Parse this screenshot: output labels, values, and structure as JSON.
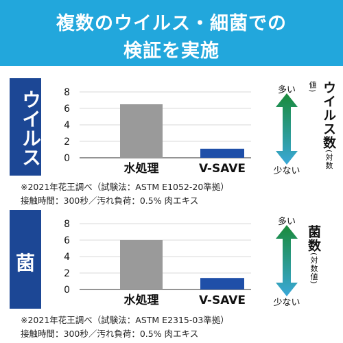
{
  "header": {
    "title_line1": "複数のウイルス・細菌での",
    "title_line2": "検証を実施"
  },
  "panels": [
    {
      "side_label": "ウイルス",
      "metric_label": "ウイルス数",
      "metric_sub": "(対数値)",
      "more_label": "多い",
      "less_label": "少ない",
      "note_line1": "※2021年花王調べ（試験法：ASTM E1052-20準拠）",
      "note_line2": "接触時間：300秒／汚れ負荷：0.5% 肉エキス"
    },
    {
      "side_label": "菌",
      "metric_label": "菌数",
      "metric_sub": "(対数値)",
      "more_label": "多い",
      "less_label": "少ない",
      "note_line1": "※2021年花王調べ（試験法：ASTM E2315-03準拠）",
      "note_line2": "接触時間：300秒／汚れ負荷：0.5% 肉エキス"
    }
  ],
  "colors": {
    "header_bg": "#22a7dc",
    "side_bg": "#1c4795",
    "bar_water": "#9a9a9a",
    "bar_vsave": "#1f4fa8",
    "arrow_top": "#1a8a3a",
    "arrow_bottom": "#3aa8d8"
  },
  "chart_data": [
    {
      "type": "bar",
      "categories": [
        "水処理",
        "V-SAVE"
      ],
      "values": [
        6.5,
        1.1
      ],
      "yticks": [
        0,
        2,
        4,
        6,
        8
      ],
      "ylim": [
        0,
        8
      ]
    },
    {
      "type": "bar",
      "categories": [
        "水処理",
        "V-SAVE"
      ],
      "values": [
        6.0,
        1.4
      ],
      "yticks": [
        0,
        2,
        4,
        6,
        8
      ],
      "ylim": [
        0,
        8
      ]
    }
  ]
}
